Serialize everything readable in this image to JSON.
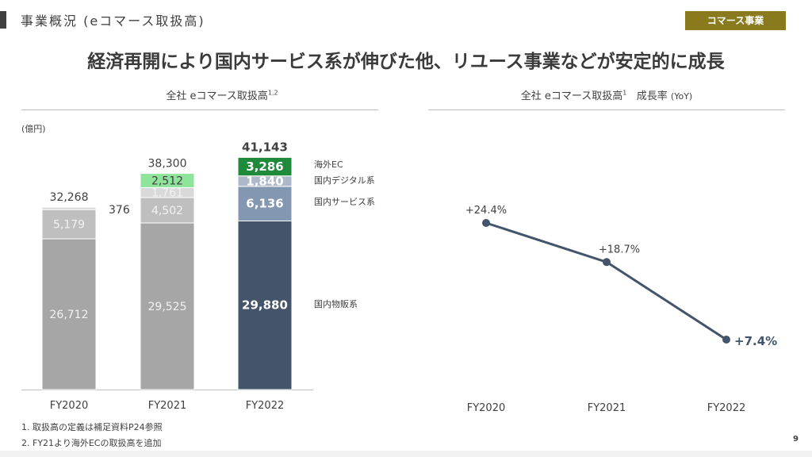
{
  "header": {
    "section_title": "事業概況 (eコマース取扱高)",
    "badge": "コマース事業",
    "headline": "経済再開により国内サービス系が伸びた他、リユース事業などが安定的に成長"
  },
  "footnotes": [
    "1. 取扱高の定義は補足資料P24参照",
    "2. FY21より海外ECの取扱高を追加"
  ],
  "page_number": "9",
  "chart_data": [
    {
      "type": "bar",
      "stacked": true,
      "title": "全社 eコマース取扱高",
      "title_sup": "1,2",
      "ylabel": "(億円)",
      "categories": [
        "FY2020",
        "FY2021",
        "FY2022"
      ],
      "totals": [
        "32,268",
        "38,300",
        "41,143"
      ],
      "series": [
        {
          "name": "国内物販系",
          "values": [
            26712,
            29525,
            29880
          ],
          "labels": [
            "26,712",
            "29,525",
            "29,880"
          ],
          "colors": [
            "#a6a6a6",
            "#a6a6a6",
            "#44546a"
          ]
        },
        {
          "name": "国内サービス系",
          "values": [
            5179,
            4502,
            6136
          ],
          "labels": [
            "5,179",
            "4,502",
            "6,136"
          ],
          "colors": [
            "#bfbfbf",
            "#bfbfbf",
            "#8497b0"
          ]
        },
        {
          "name": "国内デジタル系",
          "values": [
            376,
            1761,
            1840
          ],
          "labels": [
            "376",
            "1,761",
            "1,840"
          ],
          "colors": [
            "#d9d9d9",
            "#d9d9d9",
            "#adb9ca"
          ]
        },
        {
          "name": "海外EC",
          "values": [
            null,
            2512,
            3286
          ],
          "labels": [
            null,
            "2,512",
            "3,286"
          ],
          "colors": [
            null,
            "#8fe39b",
            "#1f8a3a"
          ]
        }
      ]
    },
    {
      "type": "line",
      "title": "全社 eコマース取扱高",
      "title_sup": "1",
      "title_suffix": "成長率",
      "title_unit": "(YoY)",
      "categories": [
        "FY2020",
        "FY2021",
        "FY2022"
      ],
      "values": [
        24.4,
        18.7,
        7.4
      ],
      "labels": [
        "+24.4%",
        "+18.7%",
        "+7.4%"
      ],
      "color": "#44546a"
    }
  ]
}
